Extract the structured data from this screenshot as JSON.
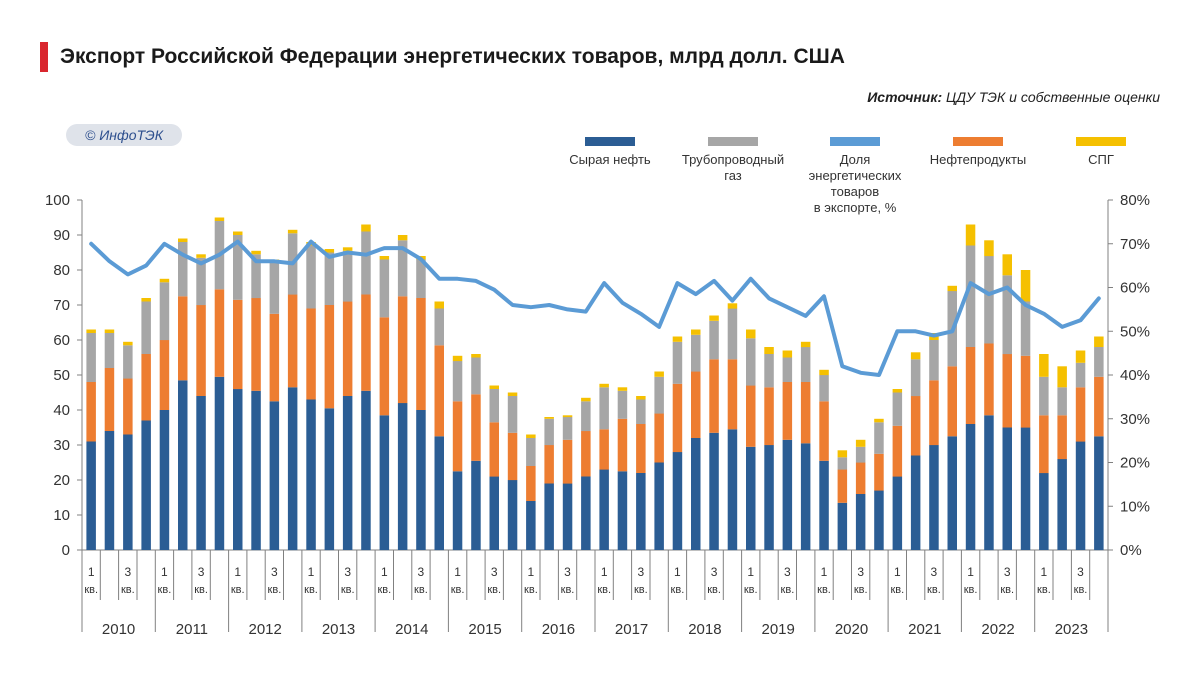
{
  "header": {
    "title": "Экспорт Российской Федерации энергетических товаров, млрд долл. США",
    "source_label": "Источник:",
    "source_text": " ЦДУ ТЭК и собственные оценки",
    "logo_text": "© ИнфоТЭК"
  },
  "colors": {
    "crude": "#2b5d94",
    "pipeline_gas": "#a6a6a6",
    "share_line": "#5b9bd5",
    "oil_products": "#ed7d31",
    "lng": "#f5c000"
  },
  "chart_data": {
    "type": "bar",
    "stacked": true,
    "title": "Экспорт Российской Федерации энергетических товаров, млрд долл. США",
    "left_axis": {
      "min": 0,
      "max": 100,
      "ticks": [
        "0",
        "10",
        "20",
        "30",
        "40",
        "50",
        "60",
        "70",
        "80",
        "90",
        "100"
      ]
    },
    "right_axis": {
      "min": 0,
      "max": 80,
      "ticks": [
        "0%",
        "10%",
        "20%",
        "30%",
        "40%",
        "50%",
        "60%",
        "70%",
        "80%"
      ]
    },
    "quarter_tick_labels": [
      {
        "q": "1",
        "unit": "кв."
      },
      {
        "q": "3",
        "unit": "кв."
      }
    ],
    "years": [
      "2010",
      "2011",
      "2012",
      "2013",
      "2014",
      "2015",
      "2016",
      "2017",
      "2018",
      "2019",
      "2020",
      "2021",
      "2022",
      "2023"
    ],
    "legend": [
      {
        "name": "Сырая нефть",
        "color": "#2b5d94",
        "kind": "bar"
      },
      {
        "name": "Трубопроводный газ",
        "color": "#a6a6a6",
        "kind": "bar"
      },
      {
        "name": "Доля энергетических товаров в экспорте, %",
        "color": "#5b9bd5",
        "kind": "line"
      },
      {
        "name": "Нефтепродукты",
        "color": "#ed7d31",
        "kind": "bar"
      },
      {
        "name": "СПГ",
        "color": "#f5c000",
        "kind": "bar"
      }
    ],
    "legend_placement": "top",
    "grid": false,
    "series": [
      {
        "name": "Сырая нефть",
        "axis": "left",
        "values": [
          31,
          34,
          33,
          37,
          40,
          48.5,
          44,
          49.5,
          46,
          45.5,
          42.5,
          46.5,
          43,
          40.5,
          44,
          45.5,
          38.5,
          42,
          40,
          32.5,
          22.5,
          25.5,
          21,
          20,
          14,
          19,
          19,
          21,
          23,
          22.5,
          22,
          25,
          28,
          32,
          33.5,
          34.5,
          29.5,
          30,
          31.5,
          30.5,
          25.5,
          13.5,
          16,
          17,
          21,
          27,
          30,
          32.5,
          36,
          38.5,
          35,
          35,
          22,
          26,
          31,
          32.5
        ]
      },
      {
        "name": "Нефтепродукты",
        "axis": "left",
        "values": [
          17,
          18,
          16,
          19,
          20,
          24,
          26,
          25,
          25.5,
          26.5,
          25,
          26.5,
          26,
          29.5,
          27,
          27.5,
          28,
          30.5,
          32,
          26,
          20,
          19,
          15.5,
          13.5,
          10,
          11,
          12.5,
          13,
          11.5,
          15,
          14,
          14,
          19.5,
          19,
          21,
          20,
          17.5,
          16.5,
          16.5,
          17.5,
          17,
          9.5,
          9,
          10.5,
          14.5,
          17,
          18.5,
          20,
          22,
          20.5,
          21,
          20.5,
          16.5,
          12.5,
          15.5,
          17
        ]
      },
      {
        "name": "Трубопроводный газ",
        "axis": "left",
        "values": [
          14,
          10,
          9.5,
          15,
          16.5,
          15.5,
          13.5,
          19.5,
          18.5,
          12.5,
          14.5,
          17.5,
          18,
          15,
          14.5,
          18,
          16.5,
          16,
          11,
          10.5,
          11.5,
          10.5,
          9.5,
          10.5,
          8,
          7.5,
          6.5,
          8.5,
          12,
          8,
          7,
          10.5,
          12,
          10.5,
          11,
          14.5,
          13.5,
          9.5,
          7,
          10,
          7.5,
          3.5,
          4.5,
          9,
          9.5,
          10.5,
          11.5,
          21.5,
          29,
          25,
          22.5,
          15.5,
          11,
          8,
          7,
          8.5
        ]
      },
      {
        "name": "СПГ",
        "axis": "left",
        "values": [
          1,
          1,
          1,
          1,
          1,
          1,
          1,
          1,
          1,
          1,
          1,
          1,
          1,
          1,
          1,
          2,
          1,
          1.5,
          1,
          2,
          1.5,
          1,
          1,
          1,
          1,
          0.5,
          0.5,
          1,
          1,
          1,
          1,
          1.5,
          1.5,
          1.5,
          1.5,
          1.5,
          2.5,
          2,
          2,
          1.5,
          1.5,
          2,
          2,
          1,
          1,
          2,
          2,
          1.5,
          6,
          4.5,
          6,
          9,
          6.5,
          6,
          3.5,
          3
        ]
      },
      {
        "name": "Доля энергетических товаров в экспорте, %",
        "axis": "right",
        "type": "line",
        "values": [
          70,
          66,
          63,
          65,
          70,
          67.5,
          65.5,
          67.5,
          70.5,
          66,
          66,
          65.5,
          70.5,
          67,
          68,
          67.5,
          69,
          69,
          66.5,
          62,
          62,
          61.5,
          59.5,
          56,
          55.5,
          56,
          55,
          54.5,
          61,
          56.5,
          54,
          51,
          61,
          58.5,
          61.5,
          57,
          62,
          57.5,
          55.5,
          53.5,
          58,
          42,
          40.5,
          40,
          50,
          50,
          49,
          50,
          61,
          58.5,
          60,
          56,
          54,
          51,
          52.5,
          57.5
        ]
      }
    ]
  }
}
